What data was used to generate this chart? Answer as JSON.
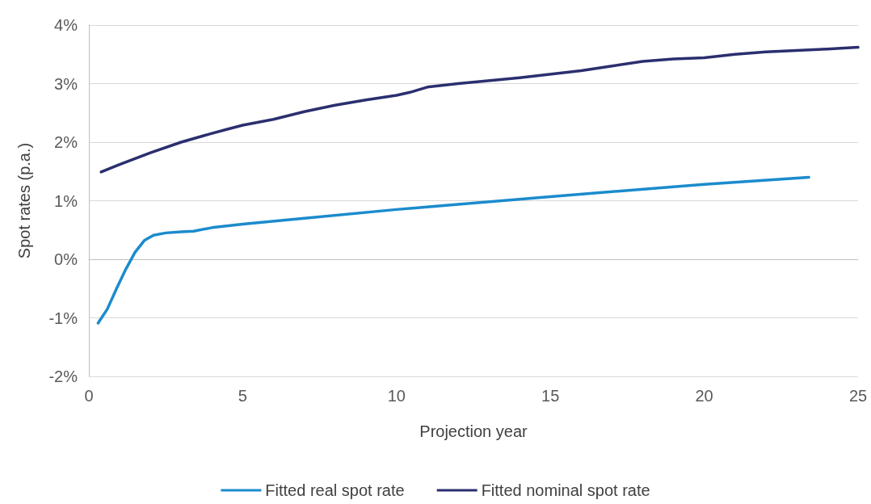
{
  "chart_data": {
    "type": "line",
    "xlabel": "Projection year",
    "ylabel": "Spot rates (p.a.)",
    "xlim": [
      0,
      25
    ],
    "xticks": [
      0,
      5,
      10,
      15,
      20,
      25
    ],
    "ylim": [
      -2,
      4
    ],
    "yticks": [
      {
        "value": -2,
        "label": "-2%"
      },
      {
        "value": -1,
        "label": "-1%"
      },
      {
        "value": 0,
        "label": "0%"
      },
      {
        "value": 1,
        "label": "1%"
      },
      {
        "value": 2,
        "label": "2%"
      },
      {
        "value": 3,
        "label": "3%"
      },
      {
        "value": 4,
        "label": "4%"
      }
    ],
    "grid": "y",
    "legend": "bottom",
    "marker": "none",
    "line_style": "solid",
    "series": [
      {
        "name": "Fitted real spot rate",
        "color": "#1b8bcd",
        "x": [
          0.3,
          0.6,
          0.9,
          1.2,
          1.5,
          1.8,
          2.1,
          2.5,
          3,
          3.4,
          4,
          5,
          7,
          10,
          15,
          20,
          23.4
        ],
        "values": [
          -1.09,
          -0.85,
          -0.5,
          -0.17,
          0.12,
          0.32,
          0.41,
          0.45,
          0.47,
          0.48,
          0.54,
          0.6,
          0.7,
          0.85,
          1.07,
          1.28,
          1.4
        ]
      },
      {
        "name": "Fitted nominal spot rate",
        "color": "#2b2f6f",
        "x": [
          0.4,
          1,
          2,
          3,
          4,
          4.5,
          5,
          6,
          7,
          8,
          9,
          10,
          10.5,
          11,
          12,
          14,
          16,
          17,
          18,
          19,
          20,
          21,
          22,
          24,
          25
        ],
        "values": [
          1.49,
          1.62,
          1.82,
          2.0,
          2.15,
          2.22,
          2.29,
          2.39,
          2.52,
          2.63,
          2.72,
          2.8,
          2.86,
          2.94,
          3.0,
          3.1,
          3.22,
          3.3,
          3.38,
          3.42,
          3.44,
          3.5,
          3.54,
          3.59,
          3.62
        ]
      }
    ]
  }
}
